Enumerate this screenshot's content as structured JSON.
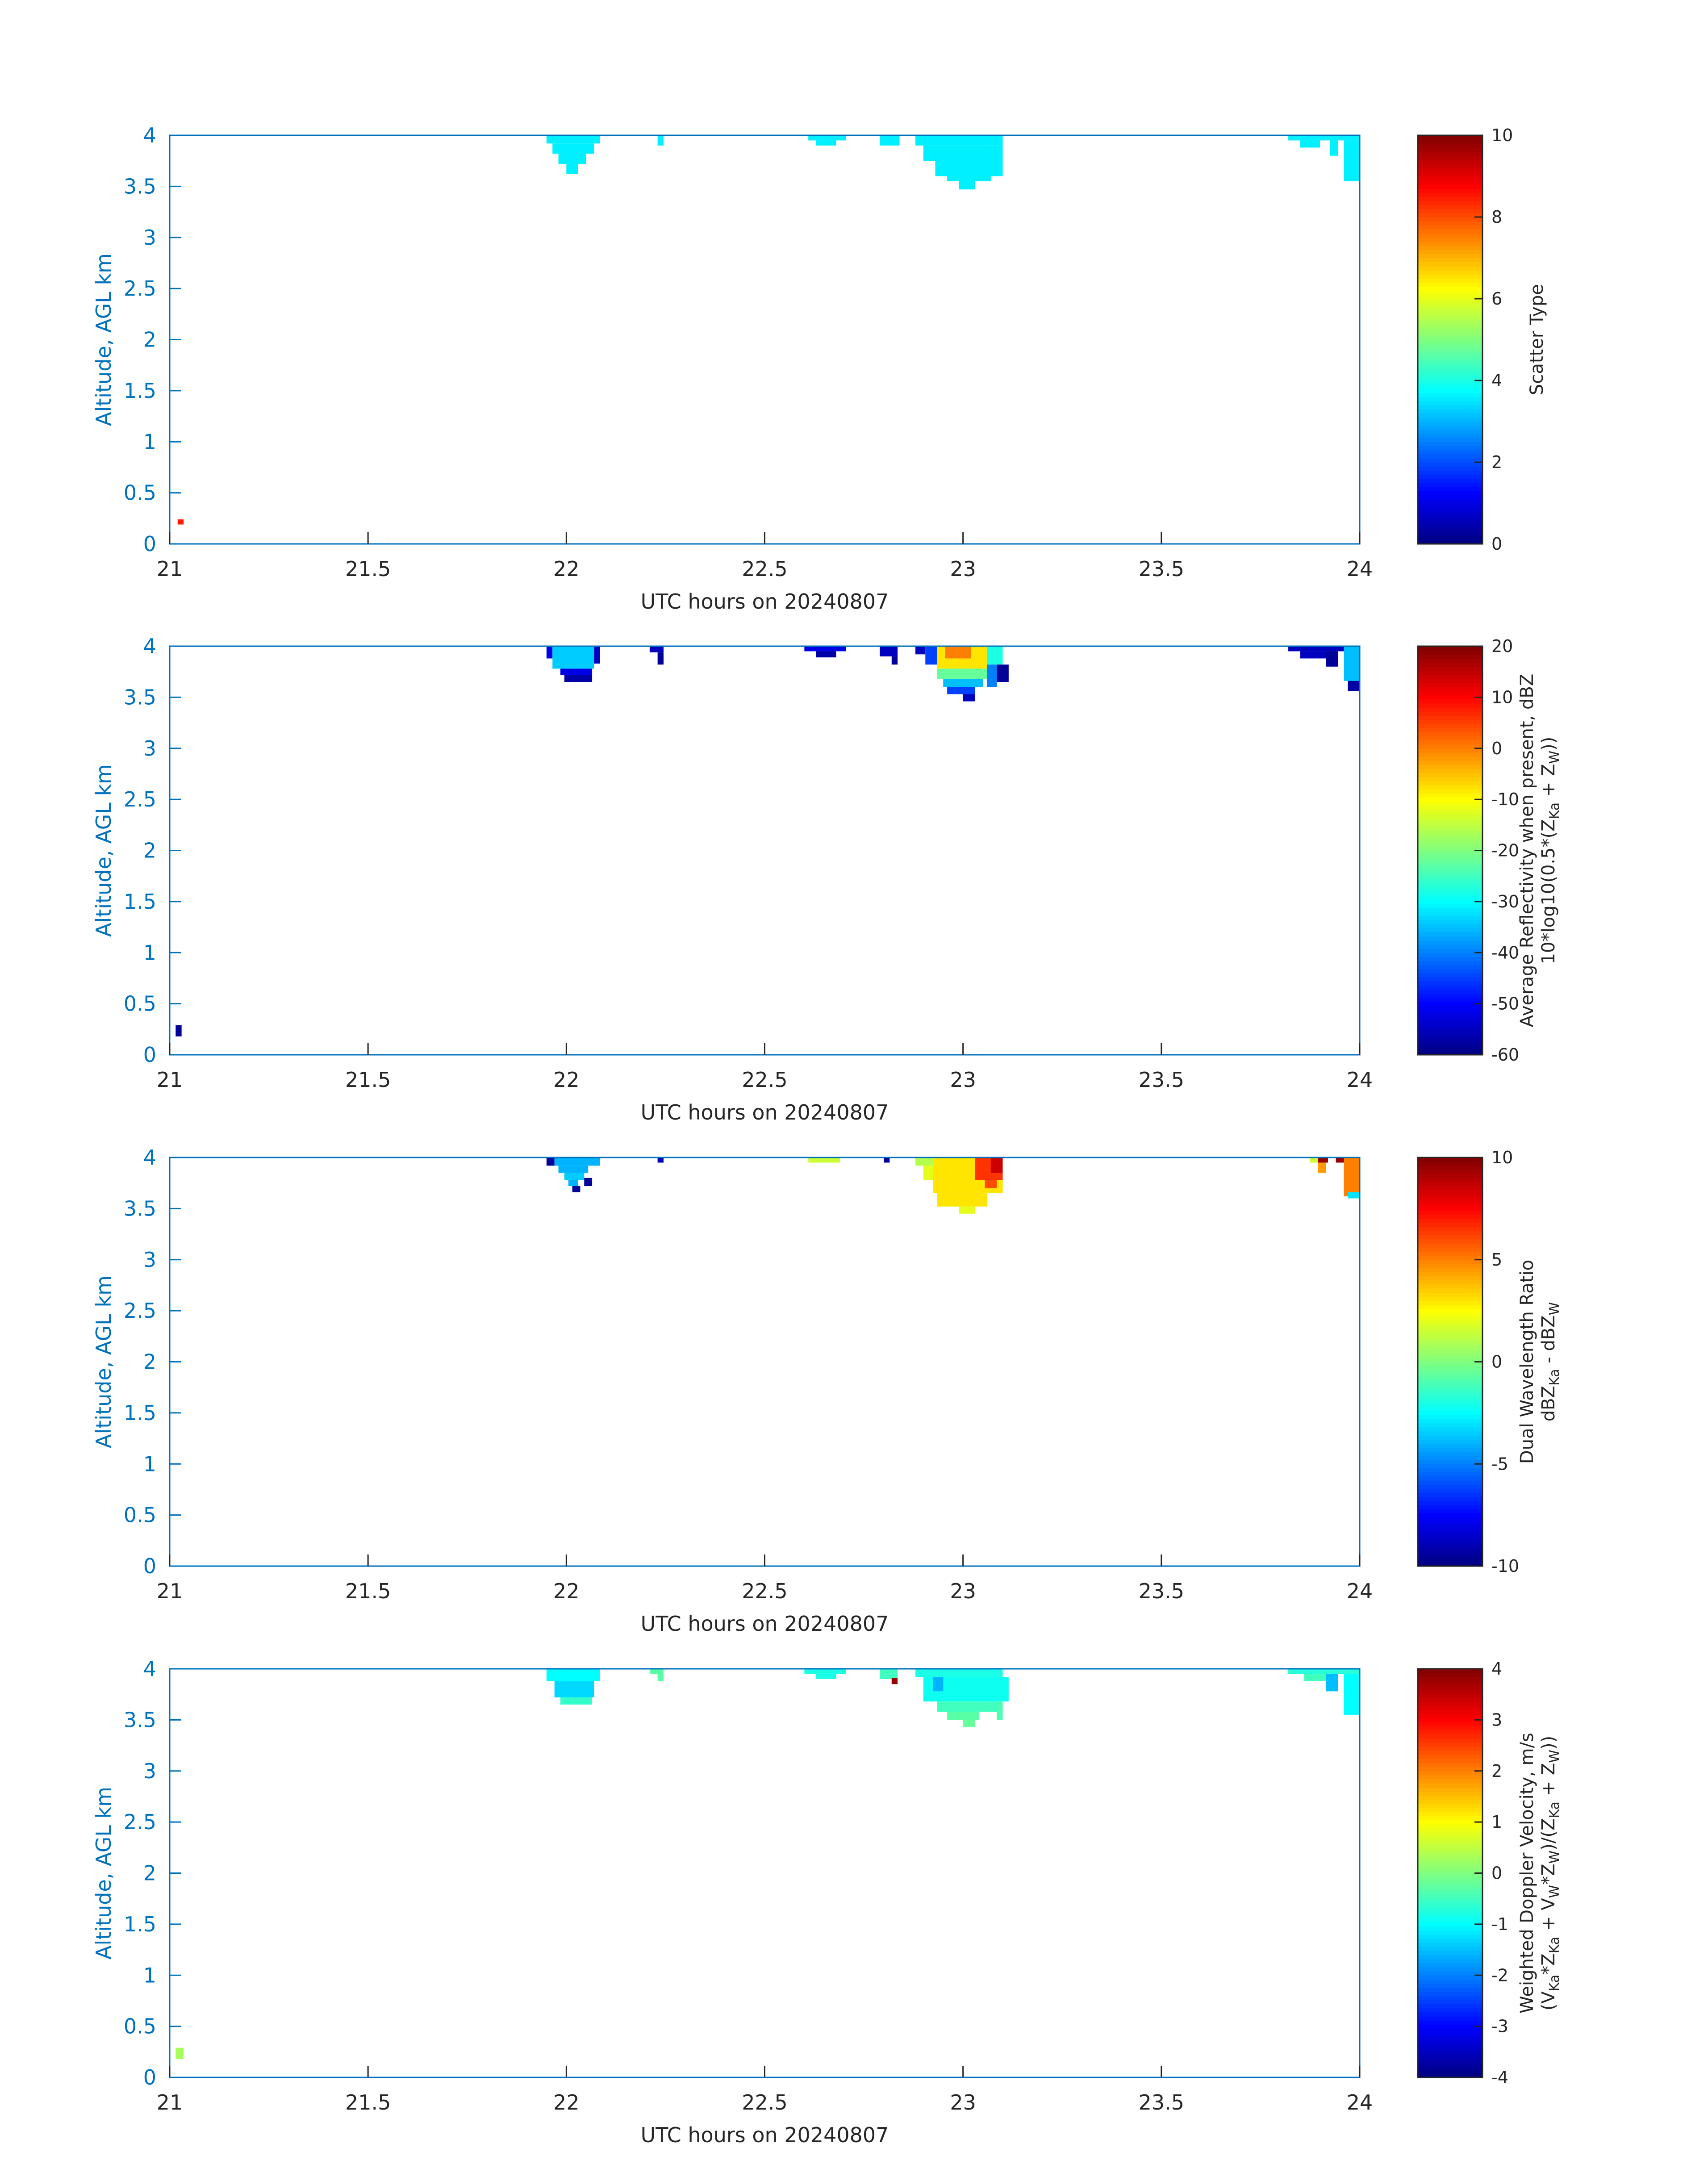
{
  "figure": {
    "background": "#ffffff",
    "axis_color": "#0072BD",
    "text_color": "#262626"
  },
  "chart_data": [
    {
      "type": "heatmap",
      "xlabel": "UTC hours on 20240807",
      "ylabel": "Altitude, AGL km",
      "xlim": [
        21,
        24
      ],
      "ylim": [
        0,
        4
      ],
      "x_ticks": [
        "21",
        "21.5",
        "22",
        "22.5",
        "23",
        "23.5",
        "24"
      ],
      "y_ticks": [
        "0",
        "0.5",
        "1",
        "1.5",
        "2",
        "2.5",
        "3",
        "3.5",
        "4"
      ],
      "colorbar": {
        "label_lines": [
          "Scatter Type"
        ],
        "clim": [
          0,
          10
        ],
        "ticks": [
          "0",
          "2",
          "4",
          "6",
          "8",
          "10"
        ],
        "colormap": "jet"
      },
      "cells": [
        {
          "x0": 21.02,
          "x1": 21.035,
          "y0": 0.19,
          "y1": 0.24,
          "value": 8.5
        },
        {
          "x0": 21.95,
          "x1": 22.085,
          "y0": 3.92,
          "y1": 4.0,
          "value": 3.6
        },
        {
          "x0": 21.965,
          "x1": 22.07,
          "y0": 3.82,
          "y1": 3.92,
          "value": 3.6
        },
        {
          "x0": 21.98,
          "x1": 22.05,
          "y0": 3.72,
          "y1": 3.82,
          "value": 3.6
        },
        {
          "x0": 22.0,
          "x1": 22.03,
          "y0": 3.62,
          "y1": 3.72,
          "value": 3.6
        },
        {
          "x0": 22.23,
          "x1": 22.245,
          "y0": 3.9,
          "y1": 4.0,
          "value": 3.6
        },
        {
          "x0": 22.61,
          "x1": 22.705,
          "y0": 3.95,
          "y1": 4.0,
          "value": 3.6
        },
        {
          "x0": 22.63,
          "x1": 22.68,
          "y0": 3.9,
          "y1": 3.95,
          "value": 3.6
        },
        {
          "x0": 22.79,
          "x1": 22.84,
          "y0": 3.9,
          "y1": 4.0,
          "value": 3.6
        },
        {
          "x0": 22.88,
          "x1": 23.1,
          "y0": 3.9,
          "y1": 4.0,
          "value": 3.6
        },
        {
          "x0": 22.9,
          "x1": 23.1,
          "y0": 3.75,
          "y1": 3.9,
          "value": 3.6
        },
        {
          "x0": 22.93,
          "x1": 23.1,
          "y0": 3.6,
          "y1": 3.75,
          "value": 3.6
        },
        {
          "x0": 22.96,
          "x1": 23.07,
          "y0": 3.55,
          "y1": 3.6,
          "value": 3.6
        },
        {
          "x0": 22.99,
          "x1": 23.03,
          "y0": 3.47,
          "y1": 3.55,
          "value": 3.6
        },
        {
          "x0": 23.82,
          "x1": 24.0,
          "y0": 3.95,
          "y1": 4.0,
          "value": 3.6
        },
        {
          "x0": 23.85,
          "x1": 23.9,
          "y0": 3.88,
          "y1": 3.95,
          "value": 3.6
        },
        {
          "x0": 23.925,
          "x1": 23.945,
          "y0": 3.8,
          "y1": 3.95,
          "value": 3.6
        },
        {
          "x0": 23.96,
          "x1": 24.0,
          "y0": 3.55,
          "y1": 3.95,
          "value": 3.6
        }
      ]
    },
    {
      "type": "heatmap",
      "xlabel": "UTC hours on 20240807",
      "ylabel": "Altitude, AGL km",
      "xlim": [
        21,
        24
      ],
      "ylim": [
        0,
        4
      ],
      "x_ticks": [
        "21",
        "21.5",
        "22",
        "22.5",
        "23",
        "23.5",
        "24"
      ],
      "y_ticks": [
        "0",
        "0.5",
        "1",
        "1.5",
        "2",
        "2.5",
        "3",
        "3.5",
        "4"
      ],
      "colorbar": {
        "label_lines": [
          "Average Reflectivity when present, dBZ",
          "10*log10(0.5*(Z",
          "Ka",
          " + Z",
          "W",
          "))"
        ],
        "clim": [
          -60,
          20
        ],
        "ticks": [
          "-60",
          "-50",
          "-40",
          "-30",
          "-20",
          "-10",
          "0",
          "10",
          "20"
        ],
        "colormap": "jet"
      },
      "cells": [
        {
          "x0": 21.015,
          "x1": 21.03,
          "y0": 0.18,
          "y1": 0.29,
          "value": -58
        },
        {
          "x0": 21.95,
          "x1": 21.965,
          "y0": 3.88,
          "y1": 4.0,
          "value": -52
        },
        {
          "x0": 21.965,
          "x1": 22.07,
          "y0": 3.78,
          "y1": 4.0,
          "value": -34
        },
        {
          "x0": 22.07,
          "x1": 22.085,
          "y0": 3.83,
          "y1": 4.0,
          "value": -55
        },
        {
          "x0": 21.985,
          "x1": 22.065,
          "y0": 3.72,
          "y1": 3.78,
          "value": -52
        },
        {
          "x0": 21.995,
          "x1": 22.065,
          "y0": 3.65,
          "y1": 3.72,
          "value": -57
        },
        {
          "x0": 22.21,
          "x1": 22.245,
          "y0": 3.94,
          "y1": 4.0,
          "value": -55
        },
        {
          "x0": 22.23,
          "x1": 22.245,
          "y0": 3.82,
          "y1": 3.94,
          "value": -58
        },
        {
          "x0": 22.6,
          "x1": 22.705,
          "y0": 3.95,
          "y1": 4.0,
          "value": -52
        },
        {
          "x0": 22.63,
          "x1": 22.68,
          "y0": 3.89,
          "y1": 3.95,
          "value": -57
        },
        {
          "x0": 22.79,
          "x1": 22.835,
          "y0": 3.9,
          "y1": 4.0,
          "value": -55
        },
        {
          "x0": 22.82,
          "x1": 22.835,
          "y0": 3.82,
          "y1": 3.9,
          "value": -58
        },
        {
          "x0": 22.88,
          "x1": 22.905,
          "y0": 3.92,
          "y1": 4.0,
          "value": -55
        },
        {
          "x0": 22.905,
          "x1": 22.935,
          "y0": 3.82,
          "y1": 4.0,
          "value": -45
        },
        {
          "x0": 22.935,
          "x1": 23.06,
          "y0": 3.78,
          "y1": 4.0,
          "value": -8
        },
        {
          "x0": 22.955,
          "x1": 23.02,
          "y0": 3.88,
          "y1": 4.0,
          "value": 0
        },
        {
          "x0": 23.06,
          "x1": 23.1,
          "y0": 3.82,
          "y1": 4.0,
          "value": -28
        },
        {
          "x0": 22.935,
          "x1": 23.06,
          "y0": 3.68,
          "y1": 3.78,
          "value": -22
        },
        {
          "x0": 22.95,
          "x1": 23.05,
          "y0": 3.6,
          "y1": 3.68,
          "value": -35
        },
        {
          "x0": 22.96,
          "x1": 23.03,
          "y0": 3.53,
          "y1": 3.6,
          "value": -45
        },
        {
          "x0": 23.0,
          "x1": 23.03,
          "y0": 3.46,
          "y1": 3.53,
          "value": -55
        },
        {
          "x0": 23.06,
          "x1": 23.085,
          "y0": 3.6,
          "y1": 3.82,
          "value": -40
        },
        {
          "x0": 23.085,
          "x1": 23.115,
          "y0": 3.65,
          "y1": 3.82,
          "value": -58
        },
        {
          "x0": 23.82,
          "x1": 23.96,
          "y0": 3.95,
          "y1": 4.0,
          "value": -55
        },
        {
          "x0": 23.85,
          "x1": 23.915,
          "y0": 3.88,
          "y1": 3.95,
          "value": -55
        },
        {
          "x0": 23.915,
          "x1": 23.945,
          "y0": 3.8,
          "y1": 3.95,
          "value": -58
        },
        {
          "x0": 23.96,
          "x1": 24.0,
          "y0": 3.66,
          "y1": 4.0,
          "value": -35
        },
        {
          "x0": 23.97,
          "x1": 24.0,
          "y0": 3.56,
          "y1": 3.66,
          "value": -57
        }
      ]
    },
    {
      "type": "heatmap",
      "xlabel": "UTC hours on 20240807",
      "ylabel": "Altitude, AGL km",
      "xlim": [
        21,
        24
      ],
      "ylim": [
        0,
        4
      ],
      "x_ticks": [
        "21",
        "21.5",
        "22",
        "22.5",
        "23",
        "23.5",
        "24"
      ],
      "y_ticks": [
        "0",
        "0.5",
        "1",
        "1.5",
        "2",
        "2.5",
        "3",
        "3.5",
        "4"
      ],
      "colorbar": {
        "label_lines": [
          "Dual Wavelength Ratio",
          "dBZ",
          "Ka",
          " - dBZ",
          "W"
        ],
        "clim": [
          -10,
          10
        ],
        "ticks": [
          "-10",
          "-5",
          "0",
          "5",
          "10"
        ],
        "colormap": "jet"
      },
      "cells": [
        {
          "x0": 21.95,
          "x1": 21.97,
          "y0": 3.92,
          "y1": 4.0,
          "value": -9.5
        },
        {
          "x0": 21.97,
          "x1": 22.085,
          "y0": 3.92,
          "y1": 4.0,
          "value": -4
        },
        {
          "x0": 21.98,
          "x1": 22.055,
          "y0": 3.85,
          "y1": 3.92,
          "value": -4
        },
        {
          "x0": 21.995,
          "x1": 22.045,
          "y0": 3.78,
          "y1": 3.85,
          "value": -3.5
        },
        {
          "x0": 22.005,
          "x1": 22.03,
          "y0": 3.72,
          "y1": 3.78,
          "value": -4
        },
        {
          "x0": 22.045,
          "x1": 22.065,
          "y0": 3.72,
          "y1": 3.8,
          "value": -9.5
        },
        {
          "x0": 22.015,
          "x1": 22.035,
          "y0": 3.66,
          "y1": 3.72,
          "value": -9.5
        },
        {
          "x0": 22.23,
          "x1": 22.245,
          "y0": 3.95,
          "y1": 4.0,
          "value": -9
        },
        {
          "x0": 22.61,
          "x1": 22.69,
          "y0": 3.95,
          "y1": 4.0,
          "value": 1.5
        },
        {
          "x0": 22.8,
          "x1": 22.815,
          "y0": 3.95,
          "y1": 4.0,
          "value": -9.5
        },
        {
          "x0": 22.88,
          "x1": 22.925,
          "y0": 3.92,
          "y1": 4.0,
          "value": 1.0
        },
        {
          "x0": 22.9,
          "x1": 22.935,
          "y0": 3.78,
          "y1": 3.92,
          "value": 2.0
        },
        {
          "x0": 22.925,
          "x1": 23.1,
          "y0": 3.65,
          "y1": 4.0,
          "value": 3.0
        },
        {
          "x0": 22.935,
          "x1": 23.06,
          "y0": 3.52,
          "y1": 3.65,
          "value": 3.0
        },
        {
          "x0": 22.99,
          "x1": 23.03,
          "y0": 3.45,
          "y1": 3.52,
          "value": 2.0
        },
        {
          "x0": 23.03,
          "x1": 23.1,
          "y0": 3.78,
          "y1": 4.0,
          "value": 6.5
        },
        {
          "x0": 23.07,
          "x1": 23.1,
          "y0": 3.85,
          "y1": 4.0,
          "value": 8.5
        },
        {
          "x0": 23.055,
          "x1": 23.085,
          "y0": 3.7,
          "y1": 3.78,
          "value": 6.0
        },
        {
          "x0": 23.875,
          "x1": 23.895,
          "y0": 3.95,
          "y1": 4.0,
          "value": 1.5
        },
        {
          "x0": 23.895,
          "x1": 23.92,
          "y0": 3.95,
          "y1": 4.0,
          "value": 9.5
        },
        {
          "x0": 23.895,
          "x1": 23.915,
          "y0": 3.85,
          "y1": 3.95,
          "value": 4.5
        },
        {
          "x0": 23.94,
          "x1": 23.96,
          "y0": 3.95,
          "y1": 4.0,
          "value": 9.5
        },
        {
          "x0": 23.96,
          "x1": 24.0,
          "y0": 3.62,
          "y1": 4.0,
          "value": 5.0
        },
        {
          "x0": 23.97,
          "x1": 24.0,
          "y0": 3.6,
          "y1": 3.66,
          "value": -3
        }
      ]
    },
    {
      "type": "heatmap",
      "xlabel": "UTC hours on 20240807",
      "ylabel": "Altitude, AGL km",
      "xlim": [
        21,
        24
      ],
      "ylim": [
        0,
        4
      ],
      "x_ticks": [
        "21",
        "21.5",
        "22",
        "22.5",
        "23",
        "23.5",
        "24"
      ],
      "y_ticks": [
        "0",
        "0.5",
        "1",
        "1.5",
        "2",
        "2.5",
        "3",
        "3.5",
        "4"
      ],
      "colorbar": {
        "label_lines": [
          "Weighted Doppler Velocity, m/s",
          "(V",
          "Ka",
          "*Z",
          "Ka",
          " + V",
          "W",
          "*Z",
          "W",
          ")/(Z",
          "Ka",
          " + Z",
          "W",
          "))"
        ],
        "clim": [
          -4,
          4
        ],
        "ticks": [
          "-4",
          "-3",
          "-2",
          "-1",
          "0",
          "1",
          "2",
          "3",
          "4"
        ],
        "colormap": "jet"
      },
      "cells": [
        {
          "x0": 21.015,
          "x1": 21.035,
          "y0": 0.18,
          "y1": 0.29,
          "value": 0.3
        },
        {
          "x0": 21.95,
          "x1": 22.085,
          "y0": 3.88,
          "y1": 4.0,
          "value": -1.0
        },
        {
          "x0": 21.97,
          "x1": 22.07,
          "y0": 3.72,
          "y1": 3.88,
          "value": -1.3
        },
        {
          "x0": 21.985,
          "x1": 22.065,
          "y0": 3.65,
          "y1": 3.72,
          "value": -0.6
        },
        {
          "x0": 22.21,
          "x1": 22.245,
          "y0": 3.95,
          "y1": 4.0,
          "value": -0.3
        },
        {
          "x0": 22.23,
          "x1": 22.245,
          "y0": 3.88,
          "y1": 3.95,
          "value": -0.3
        },
        {
          "x0": 22.6,
          "x1": 22.705,
          "y0": 3.95,
          "y1": 4.0,
          "value": -0.8
        },
        {
          "x0": 22.63,
          "x1": 22.68,
          "y0": 3.9,
          "y1": 3.95,
          "value": -0.8
        },
        {
          "x0": 22.79,
          "x1": 22.835,
          "y0": 3.9,
          "y1": 4.0,
          "value": -0.5
        },
        {
          "x0": 22.82,
          "x1": 22.835,
          "y0": 3.85,
          "y1": 3.91,
          "value": 3.8
        },
        {
          "x0": 22.88,
          "x1": 23.1,
          "y0": 3.92,
          "y1": 4.0,
          "value": -0.8
        },
        {
          "x0": 22.9,
          "x1": 23.115,
          "y0": 3.68,
          "y1": 3.92,
          "value": -0.9
        },
        {
          "x0": 22.925,
          "x1": 22.95,
          "y0": 3.78,
          "y1": 3.92,
          "value": -1.6
        },
        {
          "x0": 22.935,
          "x1": 23.085,
          "y0": 3.58,
          "y1": 3.68,
          "value": -0.5
        },
        {
          "x0": 22.96,
          "x1": 23.04,
          "y0": 3.5,
          "y1": 3.58,
          "value": -0.3
        },
        {
          "x0": 23.0,
          "x1": 23.03,
          "y0": 3.43,
          "y1": 3.5,
          "value": -0.2
        },
        {
          "x0": 23.085,
          "x1": 23.1,
          "y0": 3.5,
          "y1": 3.68,
          "value": -0.4
        },
        {
          "x0": 23.82,
          "x1": 24.0,
          "y0": 3.95,
          "y1": 4.0,
          "value": -0.7
        },
        {
          "x0": 23.86,
          "x1": 23.915,
          "y0": 3.88,
          "y1": 3.95,
          "value": -0.5
        },
        {
          "x0": 23.915,
          "x1": 23.945,
          "y0": 3.78,
          "y1": 3.95,
          "value": -1.5
        },
        {
          "x0": 23.96,
          "x1": 24.0,
          "y0": 3.55,
          "y1": 3.95,
          "value": -1.0
        }
      ]
    }
  ]
}
